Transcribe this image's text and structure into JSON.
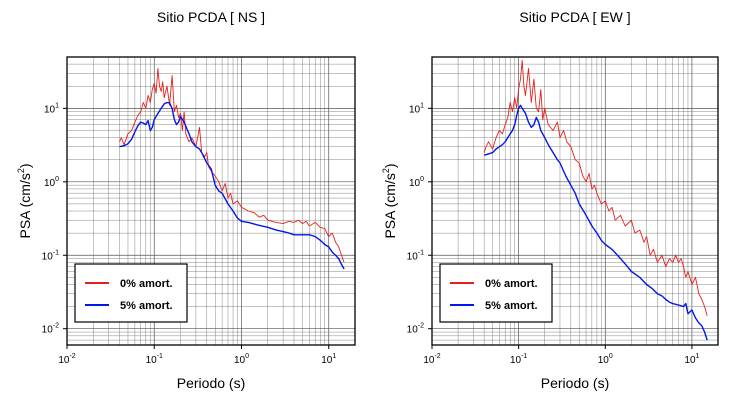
{
  "chart_data": [
    {
      "type": "line",
      "title": "Sitio PCDA [ NS ]",
      "xlabel": "Periodo (s)",
      "ylabel_base": "PSA (cm/s",
      "ylabel_exp": "2",
      "ylabel_close": ")",
      "xscale": "log",
      "yscale": "log",
      "xlim": [
        0.01,
        20
      ],
      "ylim": [
        0.006,
        50
      ],
      "grid": true,
      "legend_position": "bottom-left",
      "x_ticks": [
        {
          "base": "10",
          "exp": "-2"
        },
        {
          "base": "10",
          "exp": "-1"
        },
        {
          "base": "10",
          "exp": "0"
        },
        {
          "base": "10",
          "exp": "1"
        }
      ],
      "y_ticks": [
        {
          "base": "10",
          "exp": "-2"
        },
        {
          "base": "10",
          "exp": "-1"
        },
        {
          "base": "10",
          "exp": "0"
        },
        {
          "base": "10",
          "exp": "1"
        }
      ],
      "series": [
        {
          "name": "0% amort.",
          "color": "#e8201c",
          "x": [
            0.04,
            0.042,
            0.045,
            0.05,
            0.055,
            0.06,
            0.065,
            0.07,
            0.075,
            0.08,
            0.085,
            0.09,
            0.095,
            0.1,
            0.105,
            0.11,
            0.115,
            0.12,
            0.125,
            0.13,
            0.14,
            0.15,
            0.16,
            0.17,
            0.18,
            0.19,
            0.2,
            0.21,
            0.22,
            0.23,
            0.25,
            0.27,
            0.3,
            0.33,
            0.35,
            0.38,
            0.4,
            0.42,
            0.45,
            0.5,
            0.55,
            0.6,
            0.65,
            0.7,
            0.75,
            0.8,
            0.9,
            1.0,
            1.2,
            1.4,
            1.6,
            1.8,
            2.0,
            2.5,
            3.0,
            3.5,
            4.0,
            4.5,
            5.0,
            5.5,
            6.0,
            7.0,
            8.0,
            9.0,
            10.0,
            11.0,
            12.0,
            13.0,
            14.0,
            15.0
          ],
          "y": [
            3.5,
            4.0,
            3.2,
            4.5,
            5.0,
            6.5,
            8.0,
            9.0,
            12.0,
            10.0,
            15.0,
            12.0,
            18.0,
            22.0,
            16.0,
            35.0,
            20.0,
            17.0,
            23.0,
            14.0,
            20.0,
            11.0,
            28.0,
            9.0,
            11.0,
            7.5,
            8.5,
            5.0,
            9.0,
            4.5,
            3.5,
            4.0,
            3.0,
            5.5,
            2.5,
            2.2,
            2.5,
            1.6,
            1.4,
            1.2,
            1.0,
            0.75,
            0.95,
            0.6,
            0.7,
            0.5,
            0.55,
            0.45,
            0.4,
            0.38,
            0.33,
            0.35,
            0.3,
            0.28,
            0.27,
            0.29,
            0.28,
            0.3,
            0.27,
            0.29,
            0.25,
            0.28,
            0.24,
            0.23,
            0.18,
            0.2,
            0.15,
            0.13,
            0.1,
            0.08
          ]
        },
        {
          "name": "5% amort.",
          "color": "#0018e8",
          "x": [
            0.04,
            0.045,
            0.05,
            0.055,
            0.06,
            0.065,
            0.07,
            0.075,
            0.08,
            0.085,
            0.09,
            0.095,
            0.1,
            0.11,
            0.12,
            0.13,
            0.14,
            0.15,
            0.16,
            0.17,
            0.18,
            0.19,
            0.2,
            0.22,
            0.25,
            0.27,
            0.3,
            0.33,
            0.35,
            0.4,
            0.45,
            0.5,
            0.55,
            0.6,
            0.7,
            0.8,
            0.9,
            1.0,
            1.2,
            1.5,
            2.0,
            2.5,
            3.0,
            3.5,
            4.0,
            5.0,
            6.0,
            7.0,
            8.0,
            9.0,
            10.0,
            11.0,
            12.0,
            13.0,
            14.0,
            15.0
          ],
          "y": [
            3.0,
            3.1,
            3.3,
            3.8,
            4.8,
            5.8,
            6.5,
            6.3,
            6.0,
            6.8,
            5.0,
            5.5,
            7.0,
            8.5,
            10.0,
            11.5,
            12.0,
            11.8,
            10.0,
            7.0,
            6.0,
            6.5,
            7.8,
            6.5,
            4.5,
            3.5,
            3.0,
            2.8,
            2.5,
            1.8,
            1.5,
            0.9,
            0.75,
            0.7,
            0.5,
            0.4,
            0.32,
            0.29,
            0.28,
            0.26,
            0.24,
            0.22,
            0.21,
            0.2,
            0.19,
            0.19,
            0.19,
            0.18,
            0.16,
            0.14,
            0.13,
            0.11,
            0.1,
            0.09,
            0.075,
            0.065
          ]
        }
      ]
    },
    {
      "type": "line",
      "title": "Sitio PCDA [ EW ]",
      "xlabel": "Periodo (s)",
      "ylabel_base": "PSA (cm/s",
      "ylabel_exp": "2",
      "ylabel_close": ")",
      "xscale": "log",
      "yscale": "log",
      "xlim": [
        0.01,
        20
      ],
      "ylim": [
        0.006,
        50
      ],
      "grid": true,
      "legend_position": "bottom-left",
      "x_ticks": [
        {
          "base": "10",
          "exp": "-2"
        },
        {
          "base": "10",
          "exp": "-1"
        },
        {
          "base": "10",
          "exp": "0"
        },
        {
          "base": "10",
          "exp": "1"
        }
      ],
      "y_ticks": [
        {
          "base": "10",
          "exp": "-2"
        },
        {
          "base": "10",
          "exp": "-1"
        },
        {
          "base": "10",
          "exp": "0"
        },
        {
          "base": "10",
          "exp": "1"
        }
      ],
      "series": [
        {
          "name": "0% amort.",
          "color": "#e8201c",
          "x": [
            0.04,
            0.042,
            0.045,
            0.05,
            0.055,
            0.06,
            0.065,
            0.07,
            0.075,
            0.08,
            0.085,
            0.09,
            0.095,
            0.1,
            0.105,
            0.11,
            0.115,
            0.12,
            0.13,
            0.14,
            0.15,
            0.16,
            0.17,
            0.18,
            0.19,
            0.2,
            0.22,
            0.25,
            0.28,
            0.3,
            0.33,
            0.36,
            0.4,
            0.45,
            0.5,
            0.55,
            0.6,
            0.65,
            0.7,
            0.75,
            0.8,
            0.9,
            1.0,
            1.1,
            1.2,
            1.3,
            1.5,
            1.7,
            2.0,
            2.2,
            2.5,
            2.8,
            3.0,
            3.3,
            3.6,
            4.0,
            4.5,
            5.0,
            5.5,
            6.0,
            6.5,
            7.0,
            7.5,
            8.0,
            8.5,
            9.0,
            10.0,
            11.0,
            12.0,
            13.0,
            14.0,
            15.0
          ],
          "y": [
            2.5,
            3.0,
            3.5,
            2.8,
            4.0,
            5.0,
            4.5,
            6.0,
            7.5,
            12.0,
            9.0,
            14.0,
            10.0,
            18.0,
            25.0,
            45.0,
            20.0,
            15.0,
            35.0,
            12.0,
            25.0,
            10.0,
            9.0,
            18.0,
            7.0,
            10.0,
            6.0,
            5.0,
            6.5,
            4.0,
            5.0,
            3.5,
            3.0,
            2.0,
            1.8,
            1.2,
            1.0,
            1.3,
            0.8,
            0.9,
            0.7,
            0.5,
            0.55,
            0.4,
            0.45,
            0.3,
            0.35,
            0.25,
            0.3,
            0.2,
            0.22,
            0.15,
            0.18,
            0.1,
            0.12,
            0.08,
            0.1,
            0.07,
            0.09,
            0.08,
            0.1,
            0.08,
            0.09,
            0.07,
            0.05,
            0.06,
            0.04,
            0.05,
            0.03,
            0.025,
            0.02,
            0.015
          ]
        },
        {
          "name": "5% amort.",
          "color": "#0018e8",
          "x": [
            0.04,
            0.045,
            0.05,
            0.055,
            0.06,
            0.065,
            0.07,
            0.075,
            0.08,
            0.085,
            0.09,
            0.095,
            0.1,
            0.105,
            0.11,
            0.12,
            0.13,
            0.14,
            0.15,
            0.16,
            0.17,
            0.18,
            0.2,
            0.22,
            0.25,
            0.28,
            0.3,
            0.35,
            0.4,
            0.45,
            0.5,
            0.6,
            0.7,
            0.8,
            0.9,
            1.0,
            1.2,
            1.5,
            1.8,
            2.0,
            2.5,
            3.0,
            3.5,
            4.0,
            4.5,
            5.0,
            5.5,
            6.0,
            7.0,
            8.0,
            8.5,
            9.0,
            10.0,
            11.0,
            12.0,
            13.0,
            14.0,
            15.0
          ],
          "y": [
            2.3,
            2.4,
            2.5,
            2.8,
            3.0,
            3.2,
            3.5,
            4.0,
            4.5,
            5.0,
            6.0,
            8.0,
            10.0,
            11.0,
            10.0,
            8.5,
            6.5,
            5.5,
            6.0,
            7.5,
            6.5,
            5.0,
            4.0,
            3.2,
            2.5,
            2.0,
            1.8,
            1.2,
            0.9,
            0.7,
            0.5,
            0.35,
            0.25,
            0.2,
            0.16,
            0.14,
            0.12,
            0.09,
            0.07,
            0.06,
            0.05,
            0.04,
            0.035,
            0.03,
            0.028,
            0.025,
            0.023,
            0.022,
            0.021,
            0.02,
            0.022,
            0.016,
            0.018,
            0.014,
            0.012,
            0.011,
            0.009,
            0.007
          ]
        }
      ]
    }
  ]
}
